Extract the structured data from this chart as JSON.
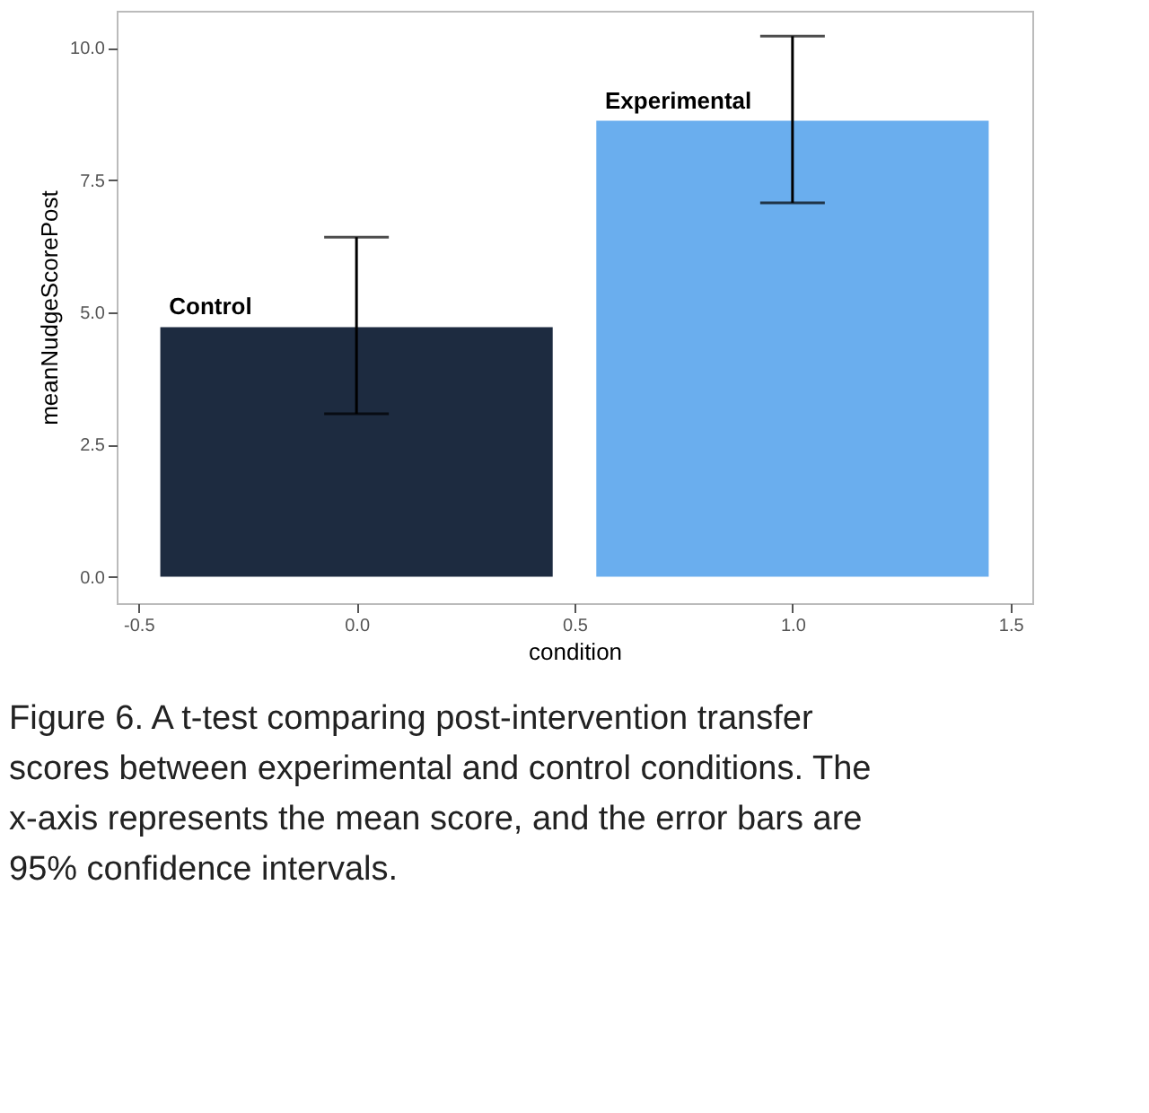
{
  "chart_data": {
    "type": "bar",
    "xlabel": "condition",
    "ylabel": "meanNudgeScorePost",
    "xlim": [
      -0.55,
      1.55
    ],
    "xticks": [
      {
        "value": -0.5,
        "label": "-0.5"
      },
      {
        "value": 0,
        "label": "0.0"
      },
      {
        "value": 0.5,
        "label": "0.5"
      },
      {
        "value": 1,
        "label": "1.0"
      },
      {
        "value": 1.5,
        "label": "1.5"
      }
    ],
    "ylim": [
      -0.5,
      10.7
    ],
    "yticks": [
      {
        "value": 0,
        "label": "0.0"
      },
      {
        "value": 2.5,
        "label": "2.5"
      },
      {
        "value": 5,
        "label": "5.0"
      },
      {
        "value": 7.5,
        "label": "7.5"
      },
      {
        "value": 10,
        "label": "10.0"
      }
    ],
    "series": [
      {
        "name": "Control",
        "color": "#1d2b40",
        "x": [
          0
        ],
        "values": [
          4.72
        ],
        "errors": [
          [
            3.08,
            6.42
          ]
        ]
      },
      {
        "name": "Experimental",
        "color": "#6aaeee",
        "x": [
          1
        ],
        "values": [
          8.62
        ],
        "errors": [
          [
            7.07,
            10.22
          ]
        ]
      }
    ],
    "grid": false,
    "annotations": [
      "Figure 6. A t-test comparing post-intervention transfer scores between experimental and control conditions. The x-axis represents the mean score, and the error bars are 95% confidence intervals."
    ]
  }
}
